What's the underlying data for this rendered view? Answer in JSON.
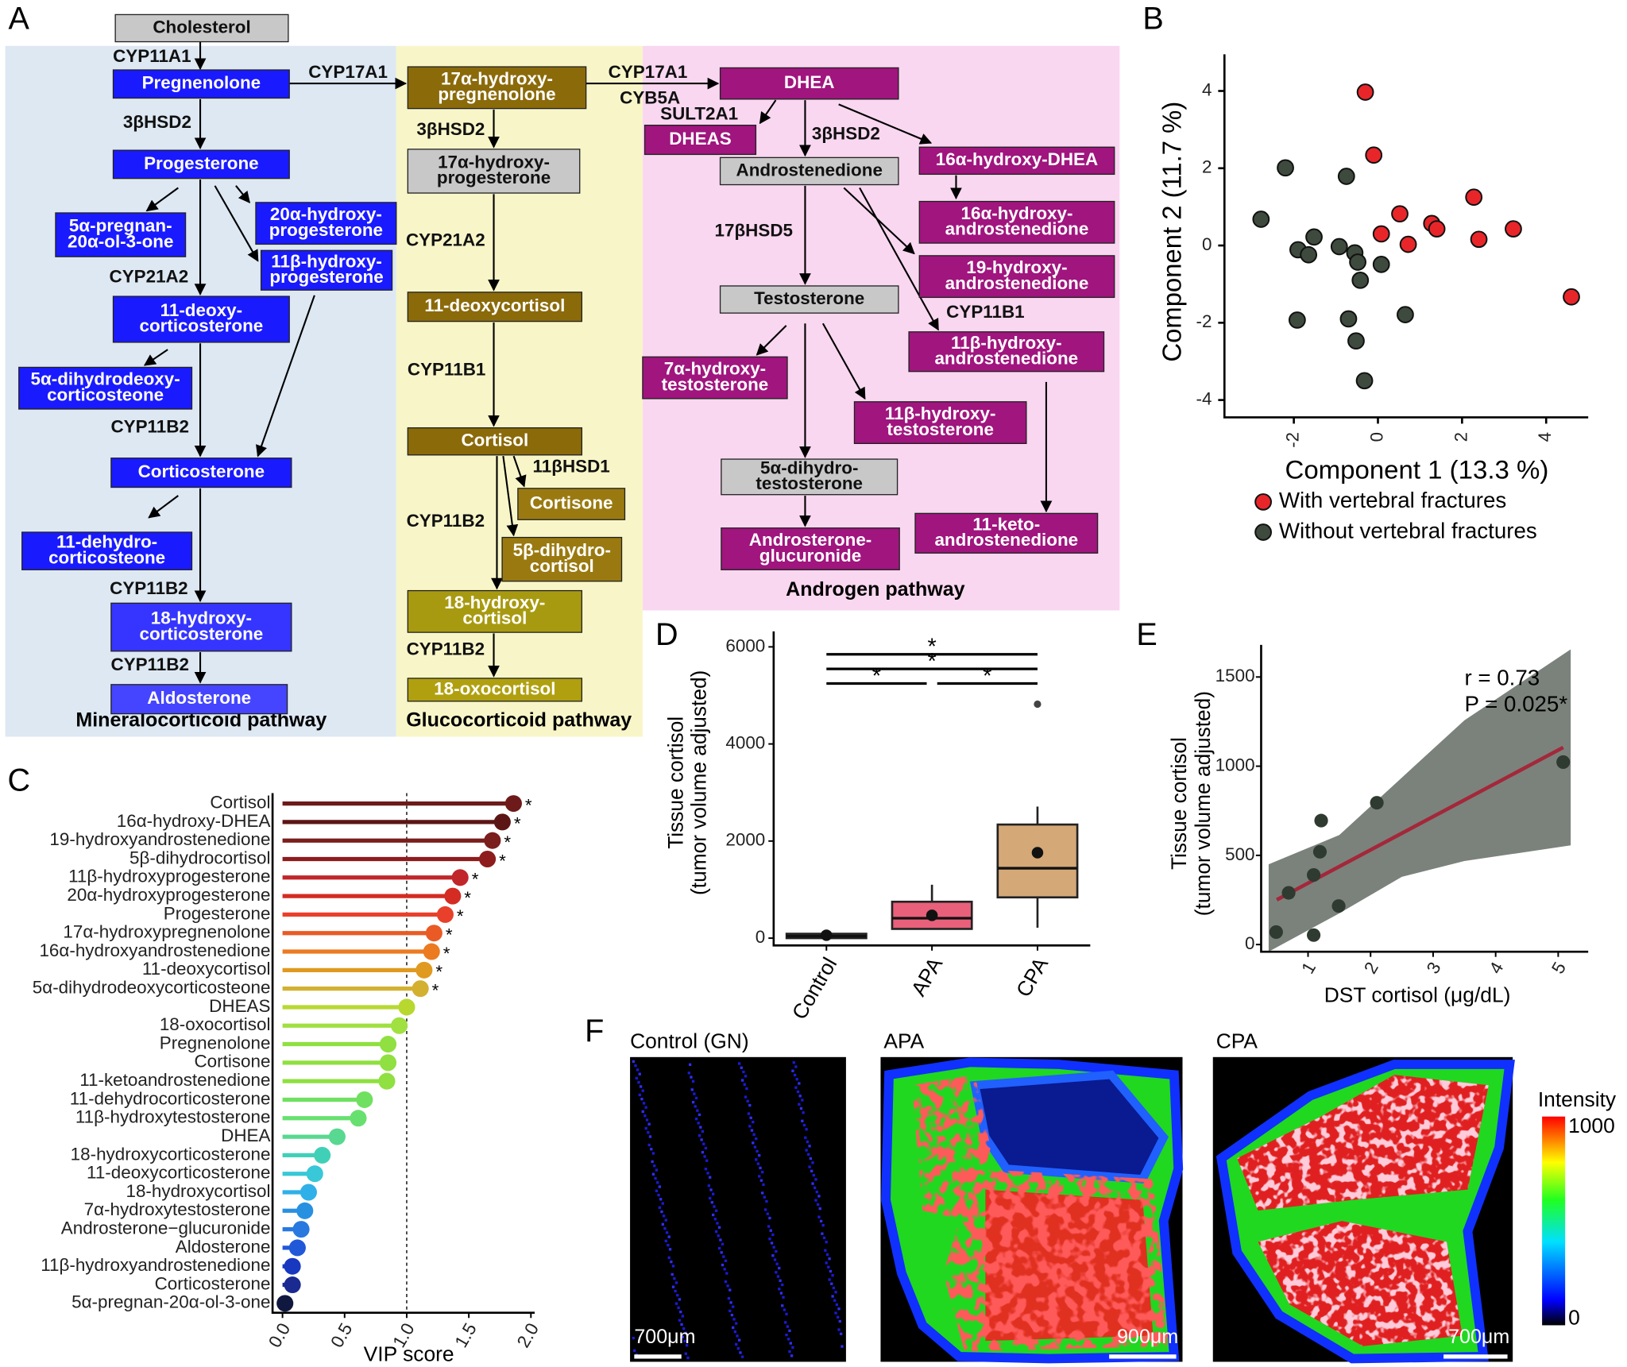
{
  "panel_labels": [
    "A",
    "B",
    "C",
    "D",
    "E",
    "F"
  ],
  "pathway": {
    "regions": [
      {
        "name": "Mineralocorticoid pathway",
        "color": "#dde8f3"
      },
      {
        "name": "Glucocorticoid pathway",
        "color": "#f8f6c8"
      },
      {
        "name": "Androgen pathway",
        "color": "#f9d7f0"
      }
    ],
    "nodes": [
      {
        "lines": [
          "Cholesterol"
        ],
        "color": "#c8c8c8"
      },
      {
        "lines": [
          "Pregnenolone"
        ],
        "color": "#1a1aff"
      },
      {
        "lines": [
          "Progesterone"
        ],
        "color": "#1a1aff"
      },
      {
        "lines": [
          "5α-pregnan-",
          "20α-ol-3-one"
        ],
        "color": "#1a1aff"
      },
      {
        "lines": [
          "20α-hydroxy-",
          "progesterone"
        ],
        "color": "#1a1aff"
      },
      {
        "lines": [
          "11β-hydroxy-",
          "progesterone"
        ],
        "color": "#1a1aff"
      },
      {
        "lines": [
          "11-deoxy-",
          "corticosterone"
        ],
        "color": "#1a1aff"
      },
      {
        "lines": [
          "5α-dihydrodeoxy-",
          "corticosteone"
        ],
        "color": "#1a1aff"
      },
      {
        "lines": [
          "Corticosterone"
        ],
        "color": "#1a1aff"
      },
      {
        "lines": [
          "11-dehydro-",
          "corticosteone"
        ],
        "color": "#1a1aff"
      },
      {
        "lines": [
          "18-hydroxy-",
          "corticosterone"
        ],
        "color": "#3535ff"
      },
      {
        "lines": [
          "Aldosterone"
        ],
        "color": "#4545ff"
      },
      {
        "lines": [
          "17α-hydroxy-",
          "pregnenolone"
        ],
        "color": "#8b6a0a"
      },
      {
        "lines": [
          "17α-hydroxy-",
          "progesterone"
        ],
        "color": "#c8c8c8"
      },
      {
        "lines": [
          "11-deoxycortisol"
        ],
        "color": "#8b6a0a"
      },
      {
        "lines": [
          "Cortisol"
        ],
        "color": "#8b6a0a"
      },
      {
        "lines": [
          "Cortisone"
        ],
        "color": "#9a7a10"
      },
      {
        "lines": [
          "5β-dihydro-",
          "cortisol"
        ],
        "color": "#9a7a10"
      },
      {
        "lines": [
          "18-hydroxy-",
          "cortisol"
        ],
        "color": "#a89a10"
      },
      {
        "lines": [
          "18-oxocortisol"
        ],
        "color": "#b0a010"
      },
      {
        "lines": [
          "DHEA"
        ],
        "color": "#a0157e"
      },
      {
        "lines": [
          "DHEAS"
        ],
        "color": "#a0157e"
      },
      {
        "lines": [
          "Androstenedione"
        ],
        "color": "#c8c8c8"
      },
      {
        "lines": [
          "16α-hydroxy-DHEA"
        ],
        "color": "#a0157e"
      },
      {
        "lines": [
          "16α-hydroxy-",
          "androstenedione"
        ],
        "color": "#a0157e"
      },
      {
        "lines": [
          "19-hydroxy-",
          "androstenedione"
        ],
        "color": "#a0157e"
      },
      {
        "lines": [
          "Testosterone"
        ],
        "color": "#c8c8c8"
      },
      {
        "lines": [
          "11β-hydroxy-",
          "androstenedione"
        ],
        "color": "#a0157e"
      },
      {
        "lines": [
          "7α-hydroxy-",
          "testosterone"
        ],
        "color": "#a0157e"
      },
      {
        "lines": [
          "11β-hydroxy-",
          "testosterone"
        ],
        "color": "#a0157e"
      },
      {
        "lines": [
          "5α-dihydro-",
          "testosterone"
        ],
        "color": "#c8c8c8"
      },
      {
        "lines": [
          "Androsterone-",
          "glucuronide"
        ],
        "color": "#a0157e"
      },
      {
        "lines": [
          "11-keto-",
          "androstenedione"
        ],
        "color": "#a0157e"
      }
    ],
    "enzymes": [
      "CYP11A1",
      "CYP17A1",
      "3βHSD2",
      "CYP21A2",
      "CYP11B2",
      "CYP11B2",
      "CYP11B2",
      "3βHSD2",
      "CYP21A2",
      "CYP11B1",
      "11βHSD1",
      "CYP11B2",
      "CYP11B2",
      "CYP17A1",
      "CYB5A",
      "SULT2A1",
      "3βHSD2",
      "17βHSD5",
      "CYP11B1"
    ]
  },
  "chart_data": [
    {
      "type": "scatter",
      "x_label": "Component 1 (13.3 %)",
      "y_label": "Component 2 (11.7 %)",
      "xlim": [
        -3.65,
        5.0
      ],
      "ylim": [
        -4.45,
        4.95
      ],
      "xticks": [
        -2,
        0,
        2,
        4
      ],
      "yticks": [
        -4,
        -2,
        0,
        2,
        4
      ],
      "legend": "bottom",
      "series": [
        {
          "name": "With vertebral fractures",
          "color": "#e8262a",
          "x": [
            -0.3,
            -0.1,
            0.52,
            0.08,
            0.72,
            1.28,
            1.4,
            2.28,
            3.22,
            2.4,
            4.6
          ],
          "values": [
            3.97,
            2.34,
            0.82,
            0.3,
            0.03,
            0.57,
            0.43,
            1.25,
            0.43,
            0.16,
            -1.33
          ]
        },
        {
          "name": "Without vertebral fractures",
          "color": "#3d4a3d",
          "x": [
            -2.78,
            -2.2,
            -1.9,
            -1.65,
            -1.52,
            -1.92,
            -0.92,
            -0.75,
            -0.55,
            -0.48,
            -0.42,
            -0.7,
            -0.52,
            -0.32,
            0.08,
            0.65
          ],
          "values": [
            0.68,
            2.01,
            -0.11,
            -0.24,
            0.22,
            -1.93,
            -0.03,
            1.79,
            -0.19,
            -0.43,
            -0.9,
            -1.9,
            -2.47,
            -3.5,
            -0.49,
            -1.79
          ]
        }
      ]
    },
    {
      "type": "lollipop",
      "x_label": "VIP score",
      "xlim": [
        -0.08,
        2.03
      ],
      "xticks": [
        {
          "value": 0,
          "label": "0.0"
        },
        0.5,
        {
          "value": 1,
          "label": "1.0"
        },
        1.5,
        {
          "value": 2,
          "label": "2.0"
        }
      ],
      "threshold": 1,
      "categories": [
        "Cortisol",
        "16α-hydroxy-DHEA",
        "19-hydroxyandrostenedione",
        "5β-dihydrocortisol",
        "11β-hydroxyprogesterone",
        "20α-hydroxyprogesterone",
        "Progesterone",
        "17α-hydroxypregnenolone",
        "16α-hydroxyandrostenedione",
        "11-deoxycortisol",
        "5α-dihydrodeoxycorticosteone",
        "DHEAS",
        "18-oxocortisol",
        "Pregnenolone",
        "Cortisone",
        "11-ketoandrostenedione",
        "11-dehydrocorticosterone",
        "11β-hydroxytestosterone",
        "DHEA",
        "18-hydroxycorticosterone",
        "11-deoxycorticosterone",
        "18-hydroxycortisol",
        "7α-hydroxytestosterone",
        "Androsterone−glucuronide",
        "Aldosterone",
        "11β-hydroxyandrostenedione",
        "Corticosterone",
        "5α-pregnan-20α-ol-3-one"
      ],
      "values": [
        1.86,
        1.77,
        1.69,
        1.65,
        1.43,
        1.37,
        1.31,
        1.22,
        1.2,
        1.14,
        1.11,
        1.0,
        0.94,
        0.85,
        0.85,
        0.84,
        0.66,
        0.61,
        0.44,
        0.32,
        0.26,
        0.21,
        0.18,
        0.15,
        0.12,
        0.08,
        0.08,
        0.02
      ],
      "value_labels": [
        "*",
        "*",
        "*",
        "*",
        "*",
        "*",
        "*",
        "*",
        "*",
        "*",
        "*",
        null,
        null,
        null,
        null,
        null,
        null,
        null,
        null,
        null,
        null,
        null,
        null,
        null,
        null,
        null,
        null,
        null
      ],
      "colors": [
        "#6e1a1a",
        "#5c1515",
        "#7a1e1e",
        "#8e1c1c",
        "#c0262a",
        "#d42b22",
        "#e8402a",
        "#e95a25",
        "#ec7a20",
        "#e09a20",
        "#d4b030",
        "#b8d830",
        "#a0e040",
        "#8fe040",
        "#8fe040",
        "#8fe040",
        "#70e060",
        "#68e070",
        "#58d890",
        "#40d0b8",
        "#38c8d8",
        "#30b0e8",
        "#2890e0",
        "#2878e0",
        "#2058d8",
        "#1838c0",
        "#1a2a90",
        "#101840"
      ]
    },
    {
      "type": "box",
      "y_label": [
        "Tissue cortisol",
        "(tumor volume adjusted)"
      ],
      "ylim": [
        -150,
        6320
      ],
      "yticks": [
        0,
        2000,
        4000,
        6000
      ],
      "categories": [
        "Control",
        "APA",
        "CPA"
      ],
      "colors": [
        "#555555",
        "#e8607a",
        "#d4a877"
      ],
      "boxes": [
        {
          "q1": 0,
          "median": 40,
          "q3": 90,
          "whisker_low": 0,
          "whisker_high": 150,
          "mean": 60,
          "outliers": []
        },
        {
          "q1": 190,
          "median": 410,
          "q3": 750,
          "whisker_low": 190,
          "whisker_high": 1100,
          "mean": 470,
          "outliers": []
        },
        {
          "q1": 840,
          "median": 1440,
          "q3": 2340,
          "whisker_low": 215,
          "whisker_high": 2710,
          "mean": 1760,
          "outliers": [
            4820
          ]
        }
      ],
      "comparisons": [
        {
          "from": "Control",
          "to": "CPA",
          "label": "*"
        },
        {
          "from": "Control",
          "to": "CPA",
          "label": "*"
        },
        {
          "from": "Control",
          "to": "APA",
          "label": "*"
        },
        {
          "from": "APA",
          "to": "CPA",
          "label": "*"
        }
      ]
    },
    {
      "type": "scatter_fit",
      "x_label": "DST cortisol (μg/dL)",
      "y_label": [
        "Tissue cortisol",
        "(tumor volume adjusted)"
      ],
      "xlim": [
        0.25,
        5.48
      ],
      "ylim": [
        -40,
        1680
      ],
      "xticks": [
        1,
        2,
        3,
        4,
        5
      ],
      "yticks": [
        0,
        500,
        1000,
        1500
      ],
      "annotations": [
        "r  = 0.73",
        "P = 0.025*"
      ],
      "color": "#2f3a30",
      "fit_color": "#a3283a",
      "band_color": "#7b827c",
      "x": [
        0.49,
        0.69,
        1.09,
        1.09,
        1.19,
        1.21,
        1.49,
        2.1,
        5.08
      ],
      "values": [
        70,
        290,
        53,
        390,
        520,
        695,
        216,
        795,
        1023
      ],
      "fit": {
        "x": [
          0.5,
          5.08
        ],
        "y": [
          251,
          1105
        ]
      },
      "band": {
        "x": [
          0.37,
          1.5,
          2.5,
          3.5,
          5.2
        ],
        "upper": [
          450,
          614,
          936,
          1257,
          1655
        ],
        "lower": [
          -40,
          175,
          380,
          468,
          556
        ]
      }
    }
  ],
  "images": {
    "panels": [
      {
        "title": "Control (GN)",
        "scale": "700μm"
      },
      {
        "title": "APA",
        "scale": "900μm"
      },
      {
        "title": "CPA",
        "scale": "700μm"
      }
    ],
    "colorbar": {
      "title": "Intensity",
      "ticks": [
        0,
        1000
      ]
    }
  }
}
